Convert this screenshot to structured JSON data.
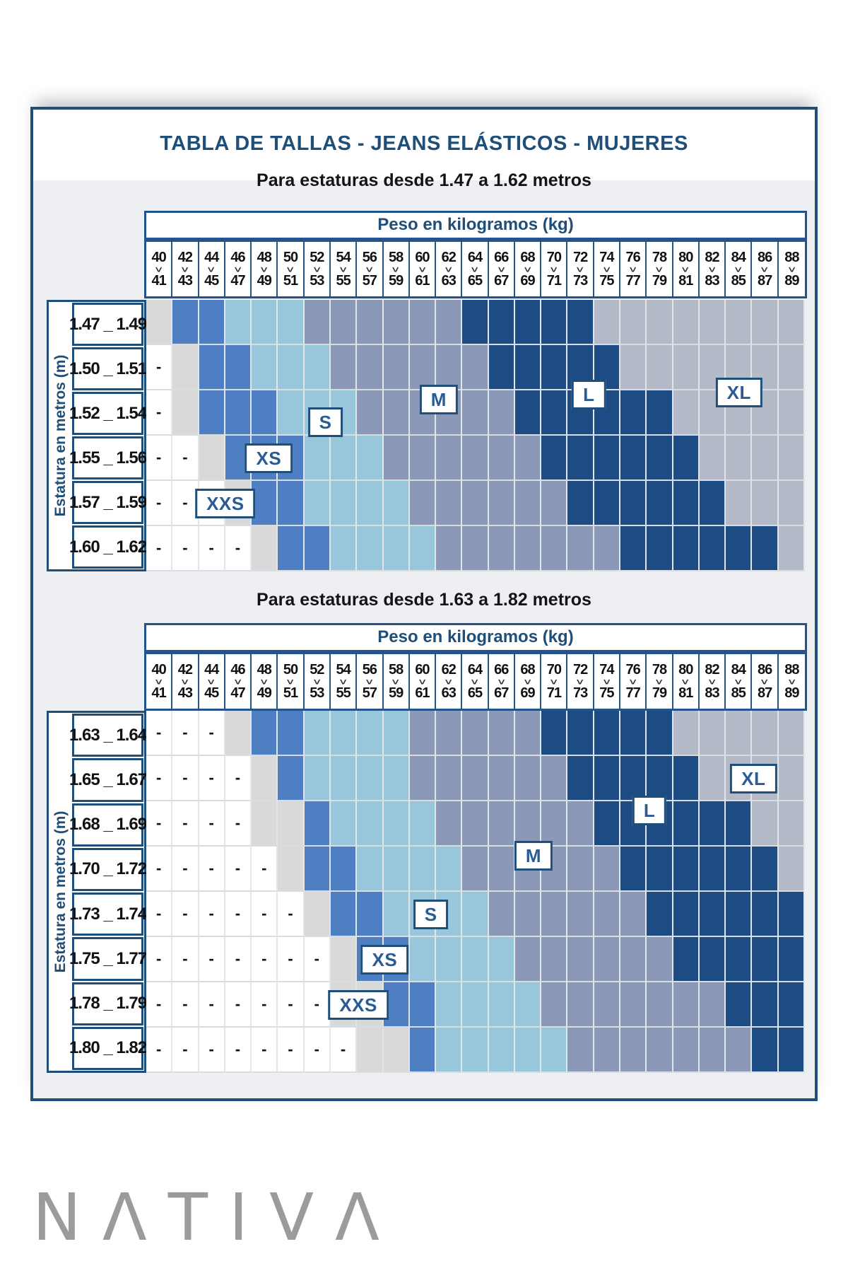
{
  "title": "TABLA DE TALLAS - JEANS ELÁSTICOS - MUJERES",
  "brand": {
    "logo_text": "NΛTIVΛ"
  },
  "legend": {
    "size_names": {
      "1": "XXS",
      "2": "XS",
      "3": "S",
      "4": "M",
      "5": "L",
      "6": "XL"
    },
    "cell_colors": {
      "0": "#ffffff",
      "1": "#d9d9d9",
      "2": "#4d7fc2",
      "3": "#98c7dc",
      "4": "#8c98b8",
      "5": "#1d4c84",
      "6": "#b4bac7"
    },
    "dash_char": "-",
    "accent_dark_blue": "#1f4e79"
  },
  "chart_data": [
    {
      "type": "heatmap",
      "subtitle": "Para estaturas desde 1.47 a 1.62 metros",
      "col_axis_title": "Peso en kilogramos (kg)",
      "row_axis_title": "Estatura en metros (m)",
      "weights_kg": [
        [
          "40",
          "41"
        ],
        [
          "42",
          "43"
        ],
        [
          "44",
          "45"
        ],
        [
          "46",
          "47"
        ],
        [
          "48",
          "49"
        ],
        [
          "50",
          "51"
        ],
        [
          "52",
          "53"
        ],
        [
          "54",
          "55"
        ],
        [
          "56",
          "57"
        ],
        [
          "58",
          "59"
        ],
        [
          "60",
          "61"
        ],
        [
          "62",
          "63"
        ],
        [
          "64",
          "65"
        ],
        [
          "66",
          "67"
        ],
        [
          "68",
          "69"
        ],
        [
          "70",
          "71"
        ],
        [
          "72",
          "73"
        ],
        [
          "74",
          "75"
        ],
        [
          "76",
          "77"
        ],
        [
          "78",
          "79"
        ],
        [
          "80",
          "81"
        ],
        [
          "82",
          "83"
        ],
        [
          "84",
          "85"
        ],
        [
          "86",
          "87"
        ],
        [
          "88",
          "89"
        ]
      ],
      "rows": [
        {
          "height_m": "1.47 _ 1.49",
          "cells": "1223334444445555566666666"
        },
        {
          "height_m": "1.50 _ 1.51",
          "cells": "0122333444444555556666666"
        },
        {
          "height_m": "1.52 _ 1.54",
          "cells": "0122233344444455555566666"
        },
        {
          "height_m": "1.55 _ 1.56",
          "cells": "0012223334444445555556666"
        },
        {
          "height_m": "1.57 _ 1.59",
          "cells": "0001223333444444555555666"
        },
        {
          "height_m": "1.60 _ 1.62",
          "cells": "0000122333344444445555556"
        }
      ],
      "size_labels": [
        {
          "text": "XXS",
          "col": 3.0,
          "row": 4.5
        },
        {
          "text": "XS",
          "col": 4.65,
          "row": 3.5
        },
        {
          "text": "S",
          "col": 6.8,
          "row": 2.7
        },
        {
          "text": "M",
          "col": 11.1,
          "row": 2.2
        },
        {
          "text": "L",
          "col": 16.8,
          "row": 2.1
        },
        {
          "text": "XL",
          "col": 22.5,
          "row": 2.05
        }
      ]
    },
    {
      "type": "heatmap",
      "subtitle": "Para estaturas desde 1.63 a 1.82 metros",
      "col_axis_title": "Peso en kilogramos (kg)",
      "row_axis_title": "Estatura en metros (m)",
      "weights_kg": [
        [
          "40",
          "41"
        ],
        [
          "42",
          "43"
        ],
        [
          "44",
          "45"
        ],
        [
          "46",
          "47"
        ],
        [
          "48",
          "49"
        ],
        [
          "50",
          "51"
        ],
        [
          "52",
          "53"
        ],
        [
          "54",
          "55"
        ],
        [
          "56",
          "57"
        ],
        [
          "58",
          "59"
        ],
        [
          "60",
          "61"
        ],
        [
          "62",
          "63"
        ],
        [
          "64",
          "65"
        ],
        [
          "66",
          "67"
        ],
        [
          "68",
          "69"
        ],
        [
          "70",
          "71"
        ],
        [
          "72",
          "73"
        ],
        [
          "74",
          "75"
        ],
        [
          "76",
          "77"
        ],
        [
          "78",
          "79"
        ],
        [
          "80",
          "81"
        ],
        [
          "82",
          "83"
        ],
        [
          "84",
          "85"
        ],
        [
          "86",
          "87"
        ],
        [
          "88",
          "89"
        ]
      ],
      "rows": [
        {
          "height_m": "1.63 _ 1.64",
          "cells": "0001223333444445555566666"
        },
        {
          "height_m": "1.65 _ 1.67",
          "cells": "0000123333444444555556666"
        },
        {
          "height_m": "1.68 _ 1.69",
          "cells": "0000112333344444455555566"
        },
        {
          "height_m": "1.70 _ 1.72",
          "cells": "0000012233334444445555556"
        },
        {
          "height_m": "1.73 _ 1.74",
          "cells": "0000001223333444444555555"
        },
        {
          "height_m": "1.75 _ 1.77",
          "cells": "0000000122333344444455555"
        },
        {
          "height_m": "1.78 _ 1.79",
          "cells": "0000000112233334444444555"
        },
        {
          "height_m": "1.80 _ 1.82",
          "cells": "0000000011233333444444455"
        }
      ],
      "size_labels": [
        {
          "text": "XXS",
          "col": 8.05,
          "row": 6.5
        },
        {
          "text": "XS",
          "col": 9.05,
          "row": 5.5
        },
        {
          "text": "S",
          "col": 10.8,
          "row": 4.5
        },
        {
          "text": "M",
          "col": 14.7,
          "row": 3.2
        },
        {
          "text": "L",
          "col": 19.1,
          "row": 2.2
        },
        {
          "text": "XL",
          "col": 23.05,
          "row": 1.5
        }
      ]
    }
  ]
}
